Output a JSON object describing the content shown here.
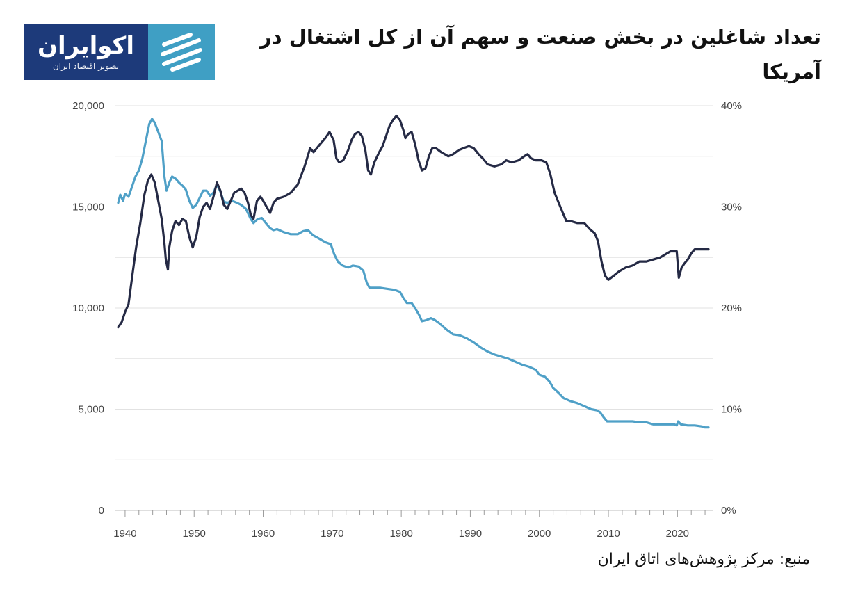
{
  "title": "تعداد شاغلین در بخش صنعت و سهم آن از کل اشتغال در آمریکا",
  "logo": {
    "name": "اکوایران",
    "tagline": "تصویر اقتصاد ایران",
    "brand_color": "#1d3a7a",
    "accent_color": "#3f9fc4"
  },
  "source": "منبع: مرکز پژوهش‌های اتاق ایران",
  "chart_data": {
    "type": "line",
    "title": "تعداد شاغلین در بخش صنعت و سهم آن از کل اشتغال در آمریکا",
    "xlim": [
      1939,
      2025
    ],
    "x_ticks": [
      "1940",
      "1950",
      "1960",
      "1970",
      "1980",
      "1990",
      "2000",
      "2010",
      "2020"
    ],
    "y_left": {
      "range": [
        0,
        20000
      ],
      "ticks": [
        "0",
        "5,000",
        "10,000",
        "15,000",
        "20,000"
      ]
    },
    "y_right": {
      "range": [
        0,
        40
      ],
      "ticks": [
        "0%",
        "10%",
        "20%",
        "30%",
        "40%"
      ]
    },
    "series": [
      {
        "name": "manufacturing_employment",
        "axis": "left",
        "color": "#252a45",
        "points": [
          [
            1939.0,
            9050
          ],
          [
            1939.5,
            9300
          ],
          [
            1940.0,
            9800
          ],
          [
            1940.5,
            10200
          ],
          [
            1941.0,
            11500
          ],
          [
            1941.6,
            13000
          ],
          [
            1942.2,
            14200
          ],
          [
            1942.8,
            15600
          ],
          [
            1943.3,
            16300
          ],
          [
            1943.8,
            16600
          ],
          [
            1944.3,
            16200
          ],
          [
            1944.8,
            15300
          ],
          [
            1945.3,
            14400
          ],
          [
            1945.7,
            13200
          ],
          [
            1945.9,
            12400
          ],
          [
            1946.2,
            11900
          ],
          [
            1946.4,
            13000
          ],
          [
            1946.8,
            13800
          ],
          [
            1947.3,
            14300
          ],
          [
            1947.8,
            14100
          ],
          [
            1948.3,
            14400
          ],
          [
            1948.8,
            14300
          ],
          [
            1949.3,
            13500
          ],
          [
            1949.8,
            13000
          ],
          [
            1950.3,
            13500
          ],
          [
            1950.8,
            14500
          ],
          [
            1951.3,
            15000
          ],
          [
            1951.8,
            15200
          ],
          [
            1952.3,
            14900
          ],
          [
            1952.8,
            15500
          ],
          [
            1953.3,
            16200
          ],
          [
            1953.8,
            15800
          ],
          [
            1954.3,
            15100
          ],
          [
            1954.8,
            14900
          ],
          [
            1955.3,
            15300
          ],
          [
            1955.8,
            15700
          ],
          [
            1956.3,
            15800
          ],
          [
            1956.8,
            15900
          ],
          [
            1957.3,
            15700
          ],
          [
            1957.8,
            15200
          ],
          [
            1958.2,
            14600
          ],
          [
            1958.6,
            14400
          ],
          [
            1959.1,
            15300
          ],
          [
            1959.6,
            15500
          ],
          [
            1960.0,
            15300
          ],
          [
            1960.5,
            15000
          ],
          [
            1961.0,
            14700
          ],
          [
            1961.5,
            15200
          ],
          [
            1962.0,
            15400
          ],
          [
            1963.0,
            15500
          ],
          [
            1964.0,
            15700
          ],
          [
            1965.0,
            16100
          ],
          [
            1966.0,
            17000
          ],
          [
            1966.8,
            17900
          ],
          [
            1967.3,
            17700
          ],
          [
            1968.0,
            18000
          ],
          [
            1969.0,
            18400
          ],
          [
            1969.6,
            18700
          ],
          [
            1970.2,
            18300
          ],
          [
            1970.6,
            17400
          ],
          [
            1971.0,
            17200
          ],
          [
            1971.6,
            17300
          ],
          [
            1972.3,
            17800
          ],
          [
            1972.8,
            18300
          ],
          [
            1973.3,
            18600
          ],
          [
            1973.8,
            18700
          ],
          [
            1974.3,
            18500
          ],
          [
            1974.8,
            17800
          ],
          [
            1975.2,
            16800
          ],
          [
            1975.6,
            16600
          ],
          [
            1976.1,
            17200
          ],
          [
            1976.8,
            17700
          ],
          [
            1977.3,
            18000
          ],
          [
            1977.8,
            18500
          ],
          [
            1978.3,
            19000
          ],
          [
            1978.8,
            19300
          ],
          [
            1979.3,
            19500
          ],
          [
            1979.8,
            19300
          ],
          [
            1980.3,
            18800
          ],
          [
            1980.6,
            18400
          ],
          [
            1981.0,
            18600
          ],
          [
            1981.5,
            18700
          ],
          [
            1982.0,
            18100
          ],
          [
            1982.5,
            17300
          ],
          [
            1983.0,
            16800
          ],
          [
            1983.5,
            16900
          ],
          [
            1984.0,
            17500
          ],
          [
            1984.5,
            17900
          ],
          [
            1985.0,
            17900
          ],
          [
            1985.8,
            17700
          ],
          [
            1986.8,
            17500
          ],
          [
            1987.5,
            17600
          ],
          [
            1988.3,
            17800
          ],
          [
            1989.0,
            17900
          ],
          [
            1989.8,
            18000
          ],
          [
            1990.5,
            17900
          ],
          [
            1991.2,
            17600
          ],
          [
            1991.8,
            17400
          ],
          [
            1992.5,
            17100
          ],
          [
            1993.5,
            17000
          ],
          [
            1994.5,
            17100
          ],
          [
            1995.2,
            17300
          ],
          [
            1996.0,
            17200
          ],
          [
            1997.0,
            17300
          ],
          [
            1997.8,
            17500
          ],
          [
            1998.3,
            17600
          ],
          [
            1998.8,
            17400
          ],
          [
            1999.5,
            17300
          ],
          [
            2000.3,
            17300
          ],
          [
            2001.0,
            17200
          ],
          [
            2001.6,
            16600
          ],
          [
            2002.2,
            15700
          ],
          [
            2002.8,
            15200
          ],
          [
            2003.4,
            14700
          ],
          [
            2003.9,
            14300
          ],
          [
            2004.5,
            14300
          ],
          [
            2005.5,
            14200
          ],
          [
            2006.5,
            14200
          ],
          [
            2007.3,
            13900
          ],
          [
            2008.0,
            13700
          ],
          [
            2008.5,
            13300
          ],
          [
            2009.0,
            12300
          ],
          [
            2009.5,
            11600
          ],
          [
            2010.0,
            11400
          ],
          [
            2010.8,
            11600
          ],
          [
            2011.5,
            11800
          ],
          [
            2012.5,
            12000
          ],
          [
            2013.5,
            12100
          ],
          [
            2014.5,
            12300
          ],
          [
            2015.5,
            12300
          ],
          [
            2016.5,
            12400
          ],
          [
            2017.5,
            12500
          ],
          [
            2018.5,
            12700
          ],
          [
            2019.0,
            12800
          ],
          [
            2019.9,
            12800
          ],
          [
            2020.2,
            11500
          ],
          [
            2020.6,
            12000
          ],
          [
            2021.0,
            12200
          ],
          [
            2021.5,
            12400
          ],
          [
            2022.0,
            12700
          ],
          [
            2022.5,
            12900
          ],
          [
            2023.0,
            12900
          ],
          [
            2023.5,
            12900
          ],
          [
            2024.5,
            12900
          ]
        ]
      },
      {
        "name": "share_of_total_employment_percent",
        "axis": "right",
        "color": "#4fa0c7",
        "points": [
          [
            1939.0,
            30.4
          ],
          [
            1939.3,
            31.2
          ],
          [
            1939.7,
            30.6
          ],
          [
            1940.0,
            31.3
          ],
          [
            1940.5,
            31.0
          ],
          [
            1941.0,
            32.0
          ],
          [
            1941.5,
            33.0
          ],
          [
            1942.0,
            33.6
          ],
          [
            1942.5,
            34.8
          ],
          [
            1943.0,
            36.5
          ],
          [
            1943.5,
            38.2
          ],
          [
            1943.9,
            38.7
          ],
          [
            1944.3,
            38.3
          ],
          [
            1944.8,
            37.4
          ],
          [
            1945.3,
            36.5
          ],
          [
            1945.7,
            33.0
          ],
          [
            1946.0,
            31.6
          ],
          [
            1946.4,
            32.4
          ],
          [
            1946.8,
            33.0
          ],
          [
            1947.3,
            32.8
          ],
          [
            1947.8,
            32.4
          ],
          [
            1948.3,
            32.1
          ],
          [
            1948.8,
            31.7
          ],
          [
            1949.3,
            30.6
          ],
          [
            1949.8,
            29.9
          ],
          [
            1950.3,
            30.2
          ],
          [
            1950.8,
            30.9
          ],
          [
            1951.3,
            31.6
          ],
          [
            1951.8,
            31.6
          ],
          [
            1952.3,
            31.1
          ],
          [
            1952.8,
            31.4
          ],
          [
            1953.3,
            32.2
          ],
          [
            1953.8,
            31.5
          ],
          [
            1954.3,
            30.5
          ],
          [
            1954.8,
            30.4
          ],
          [
            1955.5,
            30.6
          ],
          [
            1956.2,
            30.4
          ],
          [
            1956.8,
            30.2
          ],
          [
            1957.5,
            29.8
          ],
          [
            1958.2,
            28.8
          ],
          [
            1958.6,
            28.4
          ],
          [
            1959.2,
            28.8
          ],
          [
            1959.8,
            28.9
          ],
          [
            1960.5,
            28.3
          ],
          [
            1961.0,
            27.9
          ],
          [
            1961.5,
            27.7
          ],
          [
            1962.0,
            27.8
          ],
          [
            1963.0,
            27.5
          ],
          [
            1964.0,
            27.3
          ],
          [
            1965.0,
            27.3
          ],
          [
            1965.8,
            27.6
          ],
          [
            1966.5,
            27.7
          ],
          [
            1967.2,
            27.2
          ],
          [
            1968.0,
            26.9
          ],
          [
            1969.0,
            26.5
          ],
          [
            1969.8,
            26.3
          ],
          [
            1970.3,
            25.3
          ],
          [
            1970.8,
            24.6
          ],
          [
            1971.5,
            24.2
          ],
          [
            1972.3,
            24.0
          ],
          [
            1973.0,
            24.2
          ],
          [
            1973.8,
            24.1
          ],
          [
            1974.5,
            23.7
          ],
          [
            1975.0,
            22.5
          ],
          [
            1975.4,
            22.0
          ],
          [
            1976.0,
            22.0
          ],
          [
            1977.0,
            22.0
          ],
          [
            1978.0,
            21.9
          ],
          [
            1979.0,
            21.8
          ],
          [
            1979.8,
            21.6
          ],
          [
            1980.3,
            21.0
          ],
          [
            1980.8,
            20.5
          ],
          [
            1981.5,
            20.5
          ],
          [
            1982.0,
            20.0
          ],
          [
            1982.6,
            19.3
          ],
          [
            1983.0,
            18.7
          ],
          [
            1983.6,
            18.8
          ],
          [
            1984.3,
            19.0
          ],
          [
            1984.9,
            18.8
          ],
          [
            1985.5,
            18.5
          ],
          [
            1986.5,
            17.9
          ],
          [
            1987.5,
            17.4
          ],
          [
            1988.5,
            17.3
          ],
          [
            1989.5,
            17.0
          ],
          [
            1990.5,
            16.6
          ],
          [
            1991.5,
            16.1
          ],
          [
            1992.5,
            15.7
          ],
          [
            1993.5,
            15.4
          ],
          [
            1994.5,
            15.2
          ],
          [
            1995.5,
            15.0
          ],
          [
            1996.5,
            14.7
          ],
          [
            1997.5,
            14.4
          ],
          [
            1998.5,
            14.2
          ],
          [
            1999.5,
            13.9
          ],
          [
            2000.0,
            13.4
          ],
          [
            2000.8,
            13.2
          ],
          [
            2001.5,
            12.7
          ],
          [
            2002.0,
            12.1
          ],
          [
            2002.8,
            11.6
          ],
          [
            2003.5,
            11.1
          ],
          [
            2004.5,
            10.8
          ],
          [
            2005.5,
            10.6
          ],
          [
            2006.5,
            10.3
          ],
          [
            2007.5,
            10.0
          ],
          [
            2008.3,
            9.9
          ],
          [
            2008.8,
            9.7
          ],
          [
            2009.3,
            9.2
          ],
          [
            2009.8,
            8.8
          ],
          [
            2010.5,
            8.8
          ],
          [
            2011.5,
            8.8
          ],
          [
            2012.5,
            8.8
          ],
          [
            2013.5,
            8.8
          ],
          [
            2014.5,
            8.7
          ],
          [
            2015.5,
            8.7
          ],
          [
            2016.5,
            8.5
          ],
          [
            2017.5,
            8.5
          ],
          [
            2018.5,
            8.5
          ],
          [
            2019.5,
            8.5
          ],
          [
            2019.9,
            8.4
          ],
          [
            2020.1,
            8.8
          ],
          [
            2020.5,
            8.5
          ],
          [
            2021.5,
            8.4
          ],
          [
            2022.5,
            8.4
          ],
          [
            2023.5,
            8.3
          ],
          [
            2024.0,
            8.2
          ],
          [
            2024.5,
            8.2
          ]
        ]
      }
    ]
  }
}
